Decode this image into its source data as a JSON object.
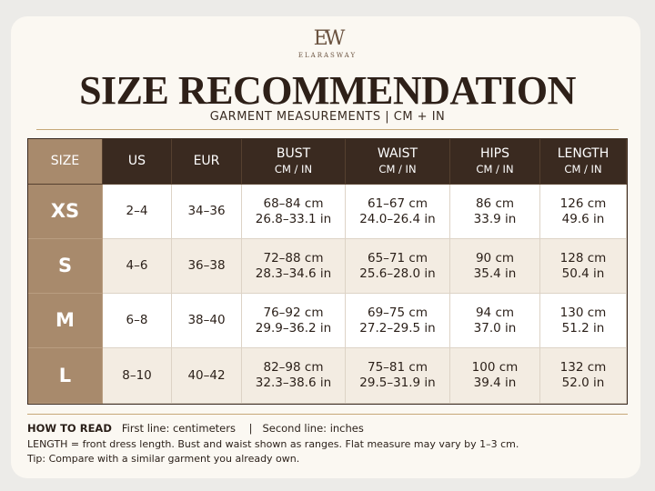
{
  "header": {
    "monogram": "EW",
    "brand": "ELARASWAY",
    "title": "SIZE RECOMMENDATION",
    "subtitle": "GARMENT MEASUREMENTS | CM + IN"
  },
  "table": {
    "columns": [
      {
        "label": "SIZE"
      },
      {
        "label": "US"
      },
      {
        "label": "EUR"
      },
      {
        "label": "BUST",
        "unit": "CM / IN"
      },
      {
        "label": "WAIST",
        "unit": "CM / IN"
      },
      {
        "label": "HIPS",
        "unit": "CM / IN"
      },
      {
        "label": "LENGTH",
        "unit": "CM / IN"
      }
    ],
    "rows": [
      [
        "XS",
        "2–4",
        "34–36",
        [
          "68–84 cm",
          "26.8–33.1 in"
        ],
        [
          "61–67 cm",
          "24.0–26.4 in"
        ],
        [
          "86 cm",
          "33.9 in"
        ],
        [
          "126 cm",
          "49.6 in"
        ]
      ],
      [
        "S",
        "4–6",
        "36–38",
        [
          "72–88 cm",
          "28.3–34.6 in"
        ],
        [
          "65–71 cm",
          "25.6–28.0 in"
        ],
        [
          "90 cm",
          "35.4 in"
        ],
        [
          "128 cm",
          "50.4 in"
        ]
      ],
      [
        "M",
        "6–8",
        "38–40",
        [
          "76–92 cm",
          "29.9–36.2 in"
        ],
        [
          "69–75 cm",
          "27.2–29.5 in"
        ],
        [
          "94 cm",
          "37.0 in"
        ],
        [
          "130 cm",
          "51.2 in"
        ]
      ],
      [
        "L",
        "8–10",
        "40–42",
        [
          "82–98 cm",
          "32.3–38.6 in"
        ],
        [
          "75–81 cm",
          "29.5–31.9 in"
        ],
        [
          "100 cm",
          "39.4 in"
        ],
        [
          "132 cm",
          "52.0 in"
        ]
      ]
    ]
  },
  "notes": {
    "how_to_read": "HOW TO READ",
    "first": "First line: centimeters",
    "separator": "|",
    "second": "Second line: inches",
    "line2": "LENGTH = front dress length. Bust and waist shown as ranges. Flat measure may vary by 1–3 cm.",
    "line3": "Tip: Compare with a similar garment you already own."
  }
}
